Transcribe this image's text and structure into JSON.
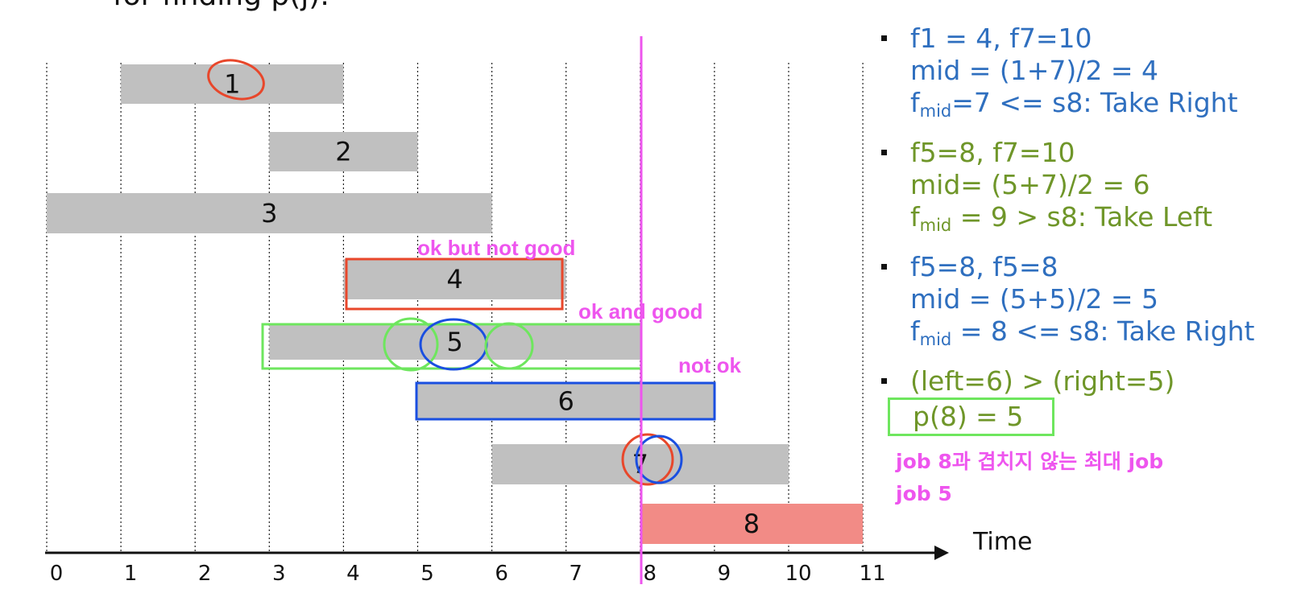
{
  "header": {
    "title_fragment": "for finding p(j)."
  },
  "diagram": {
    "axis": {
      "ticks": [
        "0",
        "1",
        "2",
        "3",
        "4",
        "5",
        "6",
        "7",
        "8",
        "9",
        "10",
        "11"
      ],
      "label": "Time"
    },
    "jobs": [
      {
        "id": "1",
        "start": 1,
        "finish": 4
      },
      {
        "id": "2",
        "start": 3,
        "finish": 5
      },
      {
        "id": "3",
        "start": 0,
        "finish": 6
      },
      {
        "id": "4",
        "start": 4,
        "finish": 7
      },
      {
        "id": "5",
        "start": 3,
        "finish": 8
      },
      {
        "id": "6",
        "start": 5,
        "finish": 9
      },
      {
        "id": "7",
        "start": 6,
        "finish": 10
      },
      {
        "id": "8",
        "start": 8,
        "finish": 11
      }
    ],
    "annotations": {
      "ok_but_not_good": "ok but not good",
      "ok_and_good": "ok and good",
      "not_ok": "not ok"
    },
    "colors": {
      "job_bar": "#c0c0c0",
      "highlight_job": "#f28b86",
      "pink": "#ee55ee",
      "red": "#e8472b",
      "blue": "#1a4fe0",
      "green": "#6ee65e"
    }
  },
  "notes": {
    "step1": {
      "line1": "f1 = 4, f7=10",
      "line2": "mid = (1+7)/2 = 4",
      "line3_f": "f",
      "line3_sub": "mid",
      "line3_rest": "=7 <= s8: Take Right"
    },
    "step2": {
      "line1": "f5=8, f7=10",
      "line2": "mid= (5+7)/2 = 6",
      "line3_f": "f",
      "line3_sub": "mid",
      "line3_rest": " = 9 > s8: Take Left"
    },
    "step3": {
      "line1": "f5=8, f5=8",
      "line2": "mid = (5+5)/2 = 5",
      "line3_f": "f",
      "line3_sub": "mid",
      "line3_rest": " = 8 <= s8: Take Right"
    },
    "step4": {
      "line1": "(left=6) > (right=5)",
      "result": "p(8) = 5"
    },
    "korean1": "job 8과 겹치지 않는 최대 job",
    "korean2": "job 5"
  }
}
